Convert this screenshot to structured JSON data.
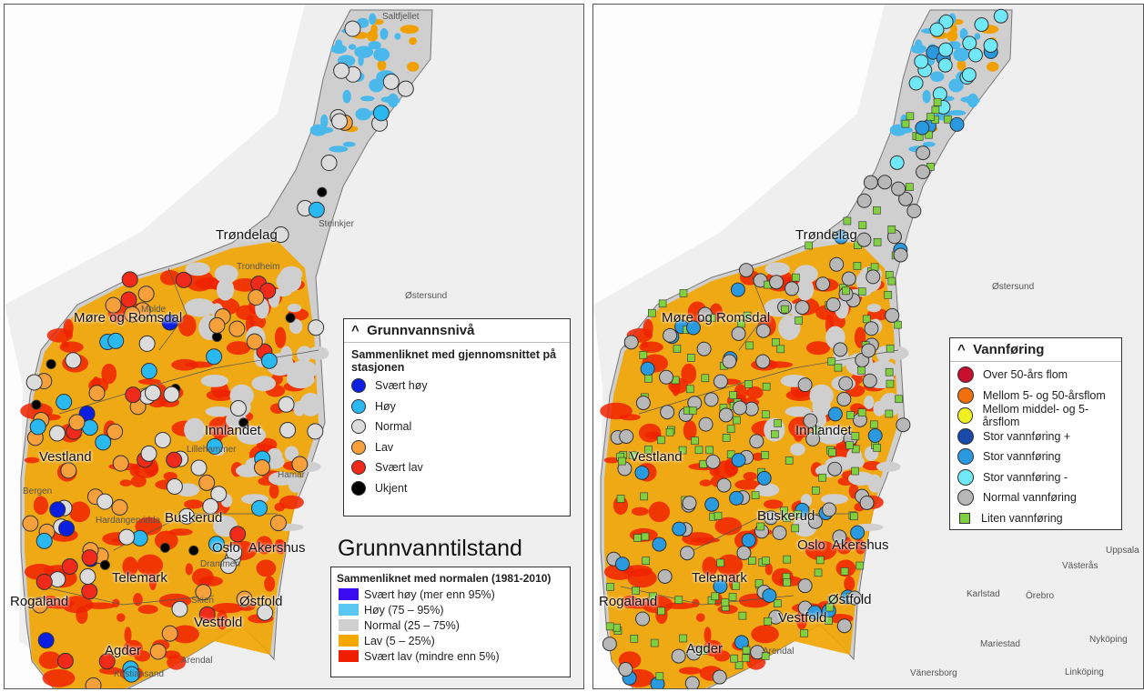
{
  "left_map": {
    "places": [
      "Saltfjellet",
      "Steinkjer",
      "Trøndelag",
      "Trondheim",
      "Østersund",
      "Møre og Romsdal",
      "Molde",
      "Innlandet",
      "Vestland",
      "Bergen",
      "Lillehammer",
      "Hardangervidda",
      "Buskerud",
      "Oslo",
      "Akershus",
      "Telemark",
      "Skien",
      "Østfold",
      "Vestfold",
      "Rogaland",
      "Agder",
      "Arendal",
      "Kristiansand",
      "Hamar",
      "Drammen"
    ],
    "legend": {
      "title": "Grunnvannsnivå",
      "subtitle": "Sammenliknet med gjennomsnittet på stasjonen",
      "items": [
        {
          "name": "Svært høy",
          "color": "#0a1fe0"
        },
        {
          "name": "Høy",
          "color": "#2ab8f0"
        },
        {
          "name": "Normal",
          "color": "#dcdcdc"
        },
        {
          "name": "Lav",
          "color": "#f5a03a"
        },
        {
          "name": "Svært lav",
          "color": "#f02a1a"
        },
        {
          "name": "Ukjent",
          "color": "#000000"
        }
      ]
    },
    "state_title": "Grunnvanntilstand",
    "state_legend": {
      "title": "Sammenliknet med normalen (1981-2010)",
      "items": [
        {
          "name": "Svært høy (mer enn 95%)",
          "color": "#3a0af0"
        },
        {
          "name": "Høy (75 – 95%)",
          "color": "#5ac8f0"
        },
        {
          "name": "Normal (25 – 75%)",
          "color": "#cfcfcf"
        },
        {
          "name": "Lav (5 – 25%)",
          "color": "#f5a800"
        },
        {
          "name": "Svært lav (mindre enn 5%)",
          "color": "#f01e00"
        }
      ]
    }
  },
  "right_map": {
    "places": [
      "Trøndelag",
      "Østersund",
      "Møre og Romsdal",
      "Innlandet",
      "Vestland",
      "Buskerud",
      "Oslo",
      "Akershus",
      "Telemark",
      "Østfold",
      "Vestfold",
      "Rogaland",
      "Agder",
      "Arendal",
      "Karlstad",
      "Örebro",
      "Västerås",
      "Uppsala",
      "Mariestad",
      "Nyköping",
      "Vänersborg",
      "Linköping"
    ],
    "legend": {
      "title": "Vannføring",
      "items": [
        {
          "name": "Over 50-års flom",
          "color": "#c8102e"
        },
        {
          "name": "Mellom 5- og 50-årsflom",
          "color": "#f07010"
        },
        {
          "name": "Mellom middel- og 5-årsflom",
          "color": "#f0f020"
        },
        {
          "name": "Stor vannføring +",
          "color": "#1a4aa8"
        },
        {
          "name": "Stor vannføring",
          "color": "#2a9ae0"
        },
        {
          "name": "Stor vannføring -",
          "color": "#70e8f8"
        },
        {
          "name": "Normal vannføring",
          "color": "#b8b8b8"
        },
        {
          "name": "Liten vannføring",
          "color": "#80d040"
        }
      ]
    }
  }
}
